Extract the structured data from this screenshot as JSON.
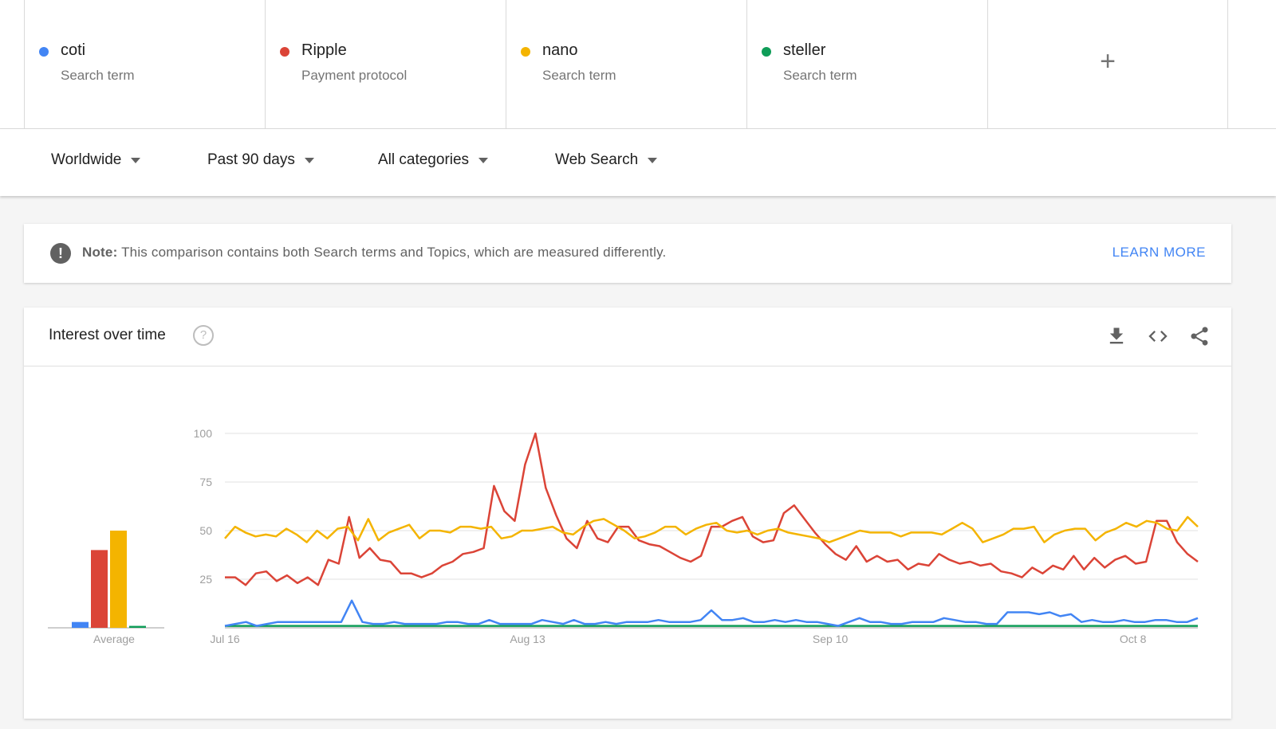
{
  "terms": [
    {
      "name": "coti",
      "type": "Search term",
      "color": "#4285f4"
    },
    {
      "name": "Ripple",
      "type": "Payment protocol",
      "color": "#db4437"
    },
    {
      "name": "nano",
      "type": "Search term",
      "color": "#f4b400"
    },
    {
      "name": "steller",
      "type": "Search term",
      "color": "#0f9d58"
    }
  ],
  "add_term_label": "+",
  "filters": {
    "region": "Worldwide",
    "time_range": "Past 90 days",
    "category": "All categories",
    "search_type": "Web Search"
  },
  "note": {
    "label": "Note:",
    "text": "This comparison contains both Search terms and Topics, which are measured differently.",
    "link": "LEARN MORE"
  },
  "chart": {
    "title": "Interest over time",
    "help_icon": "?",
    "icons": [
      "download-icon",
      "embed-code-icon",
      "share-icon"
    ]
  },
  "chart_data": {
    "type": "line",
    "ylim": [
      0,
      100
    ],
    "yticks": [
      25,
      50,
      75,
      100
    ],
    "xticks": [
      "Jul 16",
      "Aug 13",
      "Sep 10",
      "Oct 8"
    ],
    "xtick_days": [
      0,
      28,
      56,
      84
    ],
    "days": 90,
    "average_label": "Average",
    "averages": [
      {
        "name": "coti",
        "value": 3,
        "color": "#4285f4"
      },
      {
        "name": "Ripple",
        "value": 40,
        "color": "#db4437"
      },
      {
        "name": "nano",
        "value": 50,
        "color": "#f4b400"
      },
      {
        "name": "steller",
        "value": 1,
        "color": "#0f9d58"
      }
    ],
    "series": [
      {
        "name": "coti",
        "color": "#4285f4",
        "values": [
          1,
          2,
          3,
          1,
          2,
          3,
          3,
          3,
          3,
          3,
          3,
          3,
          14,
          3,
          2,
          2,
          3,
          2,
          2,
          2,
          2,
          3,
          3,
          2,
          2,
          4,
          2,
          2,
          2,
          2,
          4,
          3,
          2,
          4,
          2,
          2,
          3,
          2,
          3,
          3,
          3,
          4,
          3,
          3,
          3,
          4,
          9,
          4,
          4,
          5,
          3,
          3,
          4,
          3,
          4,
          3,
          3,
          2,
          1,
          3,
          5,
          3,
          3,
          2,
          2,
          3,
          3,
          3,
          5,
          4,
          3,
          3,
          2,
          2,
          8,
          8,
          8,
          7,
          8,
          6,
          7,
          3,
          4,
          3,
          3,
          4,
          3,
          3,
          4,
          4,
          3,
          3,
          5
        ]
      },
      {
        "name": "Ripple",
        "color": "#db4437",
        "values": [
          26,
          26,
          22,
          28,
          29,
          24,
          27,
          23,
          26,
          22,
          35,
          33,
          57,
          36,
          41,
          35,
          34,
          28,
          28,
          26,
          28,
          32,
          34,
          38,
          39,
          41,
          73,
          60,
          55,
          84,
          100,
          72,
          58,
          46,
          41,
          55,
          46,
          44,
          52,
          52,
          45,
          43,
          42,
          39,
          36,
          34,
          37,
          52,
          52,
          55,
          57,
          47,
          44,
          45,
          59,
          63,
          56,
          49,
          43,
          38,
          35,
          42,
          34,
          37,
          34,
          35,
          30,
          33,
          32,
          38,
          35,
          33,
          34,
          32,
          33,
          29,
          28,
          26,
          31,
          28,
          32,
          30,
          37,
          30,
          36,
          31,
          35,
          37,
          33,
          34,
          55,
          55,
          44,
          38,
          34
        ]
      },
      {
        "name": "nano",
        "color": "#f4b400",
        "values": [
          46,
          52,
          49,
          47,
          48,
          47,
          51,
          48,
          44,
          50,
          46,
          51,
          52,
          45,
          56,
          45,
          49,
          51,
          53,
          46,
          50,
          50,
          49,
          52,
          52,
          51,
          52,
          46,
          47,
          50,
          50,
          51,
          52,
          49,
          48,
          52,
          55,
          56,
          53,
          50,
          46,
          47,
          49,
          52,
          52,
          48,
          51,
          53,
          54,
          50,
          49,
          50,
          48,
          50,
          51,
          49,
          48,
          47,
          46,
          44,
          46,
          48,
          50,
          49,
          49,
          49,
          47,
          49,
          49,
          49,
          48,
          51,
          54,
          51,
          44,
          46,
          48,
          51,
          51,
          52,
          44,
          48,
          50,
          51,
          51,
          45,
          49,
          51,
          54,
          52,
          55,
          54,
          51,
          50,
          57,
          52
        ]
      },
      {
        "name": "steller",
        "color": "#0f9d58",
        "values": [
          1,
          1,
          1,
          1,
          1,
          1,
          1,
          1,
          1,
          1,
          1,
          1,
          1,
          1,
          1,
          1,
          1,
          1,
          1,
          1,
          1,
          1,
          1,
          1,
          1,
          1,
          1,
          1,
          1,
          1,
          1,
          1,
          1,
          1,
          1,
          1,
          1,
          1,
          1,
          1,
          1,
          1,
          1,
          1,
          1,
          1,
          1,
          1,
          1,
          1,
          1,
          1,
          1,
          1,
          1,
          1,
          1,
          1,
          1,
          1,
          1,
          1,
          1,
          1,
          1,
          1,
          1,
          1,
          1,
          1,
          1,
          1,
          1,
          1,
          1,
          1,
          1,
          1,
          1,
          1,
          1,
          1,
          1,
          1,
          1,
          1,
          1,
          1,
          1,
          1,
          1,
          1,
          1,
          1,
          1
        ]
      }
    ]
  }
}
